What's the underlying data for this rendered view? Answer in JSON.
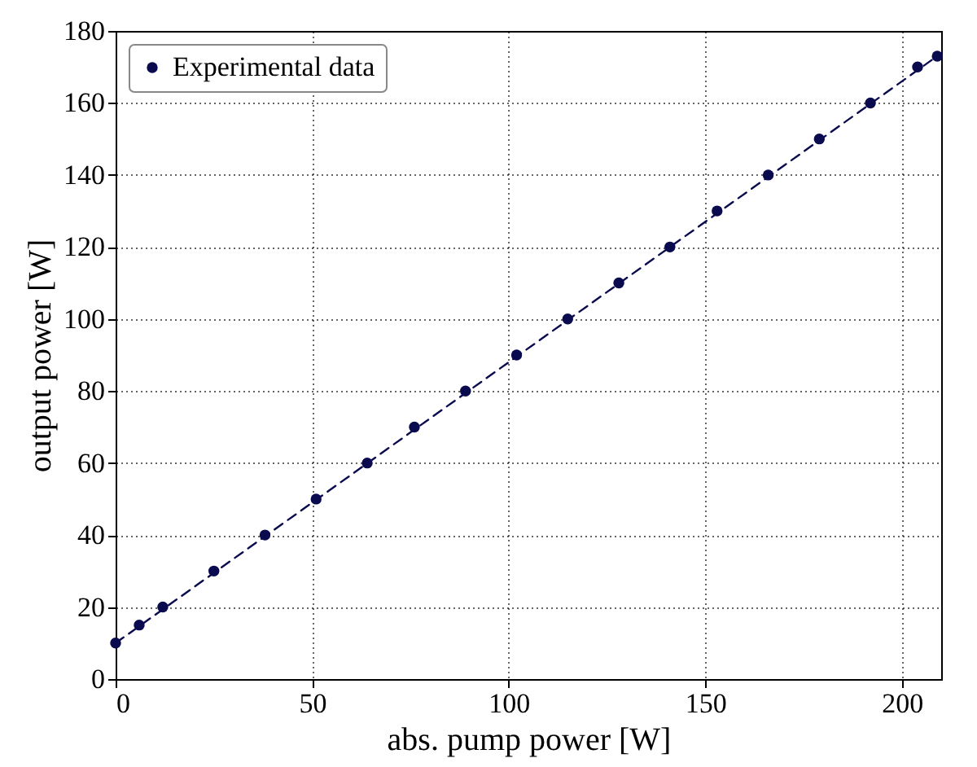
{
  "chart_data": {
    "type": "scatter",
    "xlabel": "abs. pump power [W]",
    "ylabel": "output power [W]",
    "xlim": [
      0,
      210
    ],
    "ylim": [
      0,
      180
    ],
    "xticks": [
      0,
      50,
      100,
      150,
      200
    ],
    "yticks": [
      0,
      20,
      40,
      60,
      80,
      100,
      120,
      140,
      160,
      180
    ],
    "grid": true,
    "legend": "top left",
    "series": [
      {
        "name": "Experimental data",
        "marker": "circle",
        "color": "#0a0a4f",
        "x": [
          0,
          6,
          12,
          25,
          38,
          51,
          64,
          76,
          89,
          102,
          115,
          128,
          141,
          153,
          166,
          179,
          192,
          204,
          209
        ],
        "values": [
          10,
          15,
          20,
          30,
          40,
          50,
          60,
          70,
          80,
          90,
          100,
          110,
          120,
          130,
          140,
          150,
          160,
          170,
          173
        ]
      },
      {
        "type": "line",
        "line_style": "dashed",
        "color": "#0a0a4f",
        "x": [
          0,
          210
        ],
        "values": [
          10,
          173.8
        ]
      }
    ]
  }
}
